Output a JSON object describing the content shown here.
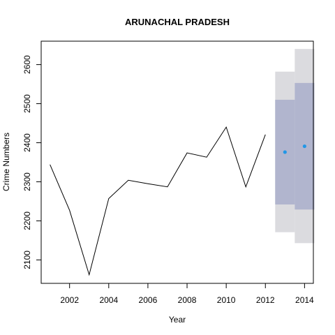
{
  "chart_data": {
    "type": "line",
    "title": "ARUNACHAL PRADESH",
    "xlabel": "Year",
    "ylabel": "Crime Numbers",
    "xlim": [
      2000.55,
      2014.45
    ],
    "ylim": [
      2040,
      2660
    ],
    "x_ticks": [
      2002,
      2004,
      2006,
      2008,
      2010,
      2012,
      2014
    ],
    "y_ticks": [
      2100,
      2200,
      2300,
      2400,
      2500,
      2600
    ],
    "grid": false,
    "legend": "none",
    "series": [
      {
        "x": [
          2001,
          2002,
          2003,
          2004,
          2005,
          2006,
          2007,
          2008,
          2009,
          2010,
          2011,
          2012
        ],
        "values": [
          2344,
          2227,
          2062,
          2257,
          2304,
          2295,
          2287,
          2374,
          2363,
          2440,
          2287,
          2421
        ],
        "color": "#000000"
      }
    ],
    "forecast": {
      "x": [
        2013,
        2014
      ],
      "point": [
        2376,
        2391
      ],
      "lo80": [
        2242,
        2229
      ],
      "hi80": [
        2510,
        2553
      ],
      "lo95": [
        2171,
        2143
      ],
      "hi95": [
        2582,
        2640
      ],
      "point_color": "#2297e6",
      "band80_color": "#b1b5ce",
      "band95_color": "#dbdbdf"
    }
  }
}
